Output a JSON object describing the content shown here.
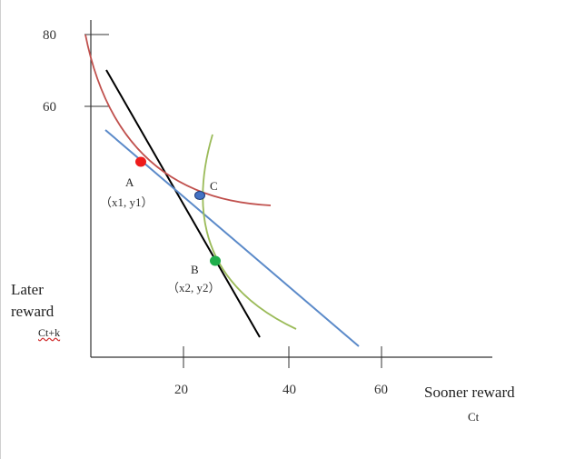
{
  "axes": {
    "y_ticks": [
      "80",
      "60"
    ],
    "x_ticks": [
      "20",
      "40",
      "60"
    ],
    "y_label_line1": "Later",
    "y_label_line2": "reward",
    "y_sub": "Ct+k",
    "x_label": "Sooner reward",
    "x_sub": "Ct"
  },
  "points": {
    "A": {
      "name": "A",
      "coord": "（x1, y1）",
      "color": "#ee1c1c"
    },
    "B": {
      "name": "B",
      "coord": "（x2, y2）",
      "color": "#1fae4b"
    },
    "C": {
      "name": "C",
      "color": "#4472c4"
    }
  },
  "curve_colors": {
    "red_indifference": "#c0504d",
    "green_indifference": "#9bbb59",
    "black_budget": "#000000",
    "blue_budget": "#5b8ac9"
  }
}
